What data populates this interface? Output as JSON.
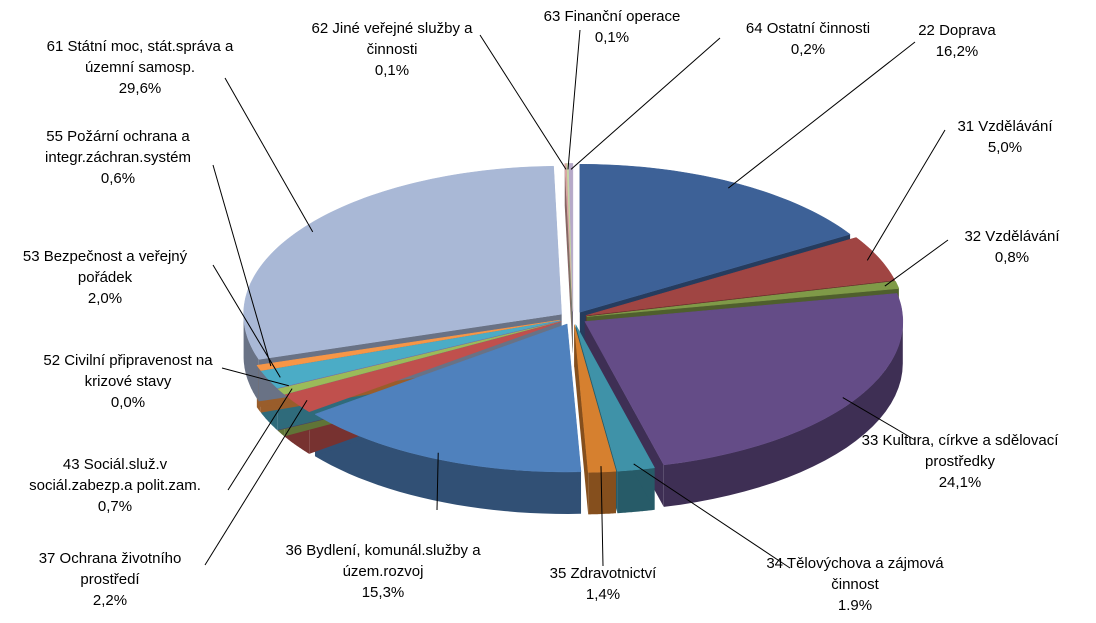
{
  "chart_data": {
    "type": "pie3d",
    "categories": [
      "22 Doprava",
      "31 Vzdělávání",
      "32 Vzdělávání",
      "33 Kultura, církve a sdělovací prostředky",
      "34 Tělovýchova a zájmová činnost",
      "35 Zdravotnictví",
      "36 Bydlení, komunál.služby a územ.rozvoj",
      "37 Ochrana životního prostředí",
      "43 Sociál.služ.v sociál.zabezp.a polit.zam.",
      "52 Civilní připravenost na krizové stavy",
      "53 Bezpečnost a veřejný pořádek",
      "55 Požární ochrana a integr.záchran.systém",
      "61 Státní moc, stát.správa a územní samosp.",
      "62 Jiné veřejné služby a činnosti",
      "63 Finanční operace",
      "64 Ostatní činnosti"
    ],
    "values": [
      16.2,
      5.0,
      0.8,
      24.1,
      1.9,
      1.4,
      15.3,
      2.2,
      0.7,
      0.0,
      2.0,
      0.6,
      29.6,
      0.1,
      0.1,
      0.2
    ],
    "value_labels": [
      "16,2%",
      "5,0%",
      "0,8%",
      "24,1%",
      "1.9%",
      "1,4%",
      "15,3%",
      "2,2%",
      "0,7%",
      "0,0%",
      "2,0%",
      "0,6%",
      "29,6%",
      "0,1%",
      "0,1%",
      "0,2%"
    ],
    "colors": [
      "#3d6197",
      "#a04543",
      "#7f9a48",
      "#644c87",
      "#3f92a8",
      "#d6802f",
      "#4f81bd",
      "#c0504d",
      "#9bbb59",
      "#8064a2",
      "#4bacc6",
      "#f79646",
      "#a9b8d6",
      "#d9a3a2",
      "#c5d6a5",
      "#b6a9c9"
    ]
  }
}
